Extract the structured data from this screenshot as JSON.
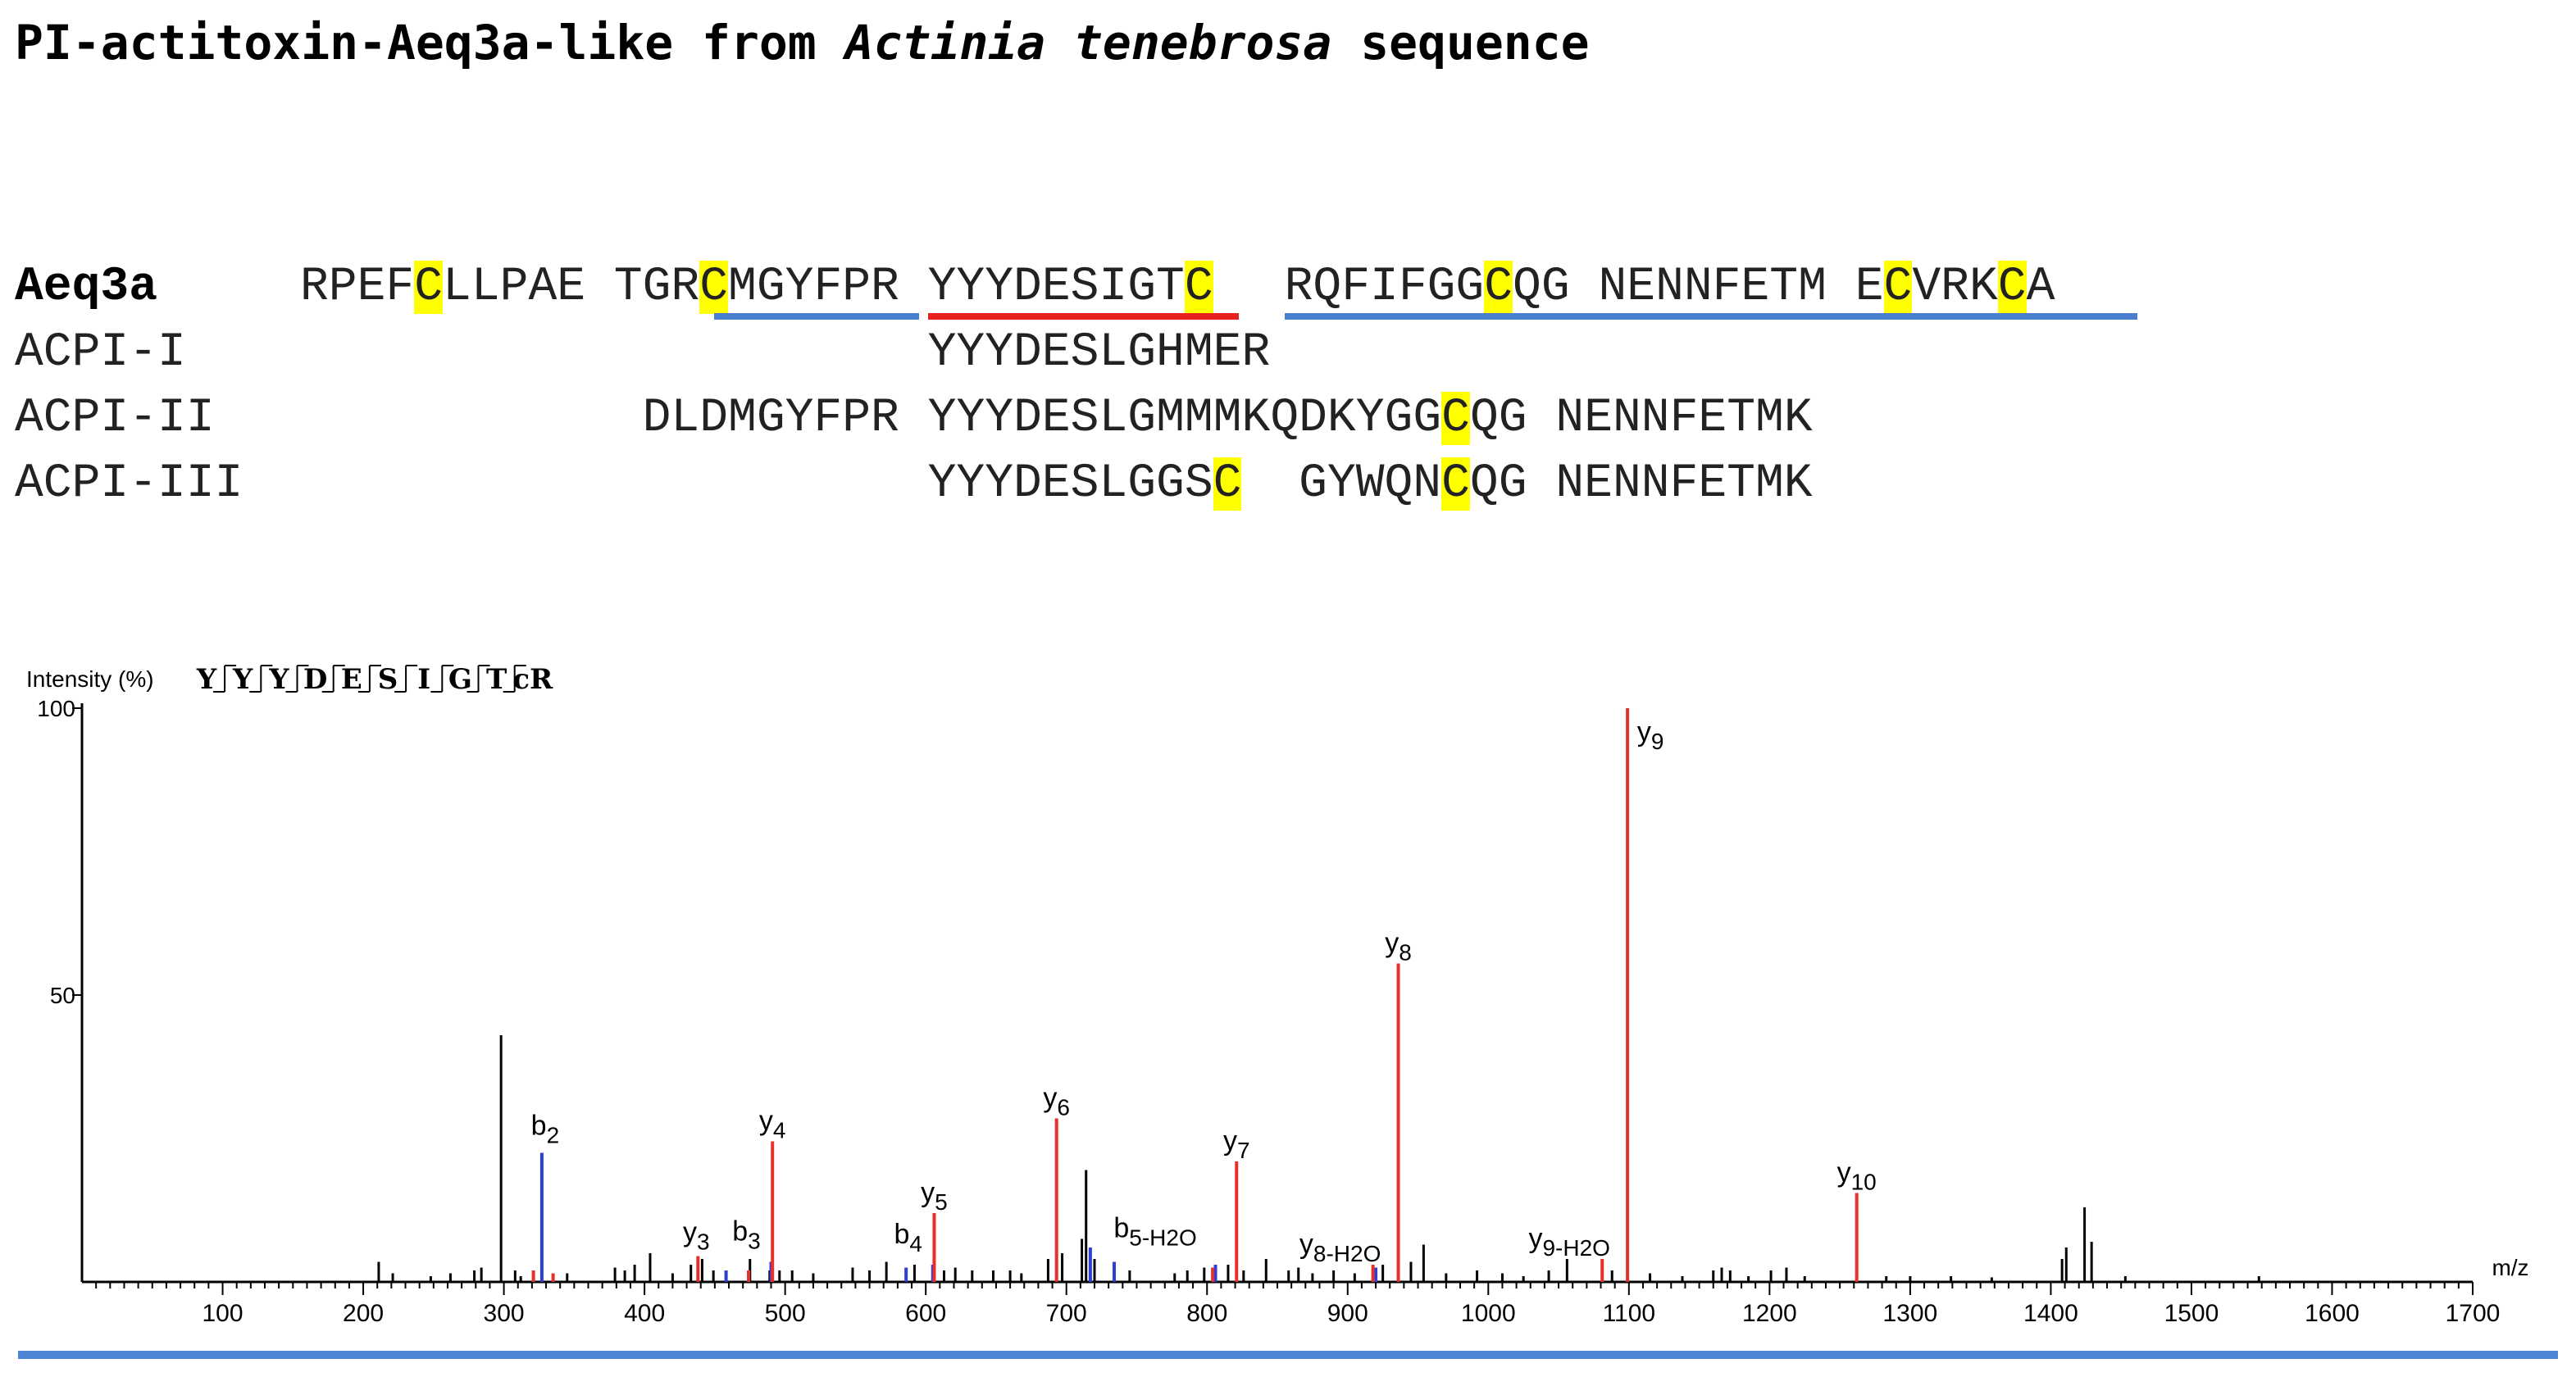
{
  "title": {
    "prefix": "PI-actitoxin-Aeq3a-like from ",
    "species": "Actinia tenebrosa",
    "suffix": " sequence"
  },
  "alignment": [
    {
      "name": "Aeq3a",
      "bold": true,
      "segments": [
        {
          "col": 10,
          "parts": [
            {
              "t": "RPEF"
            },
            {
              "t": "C",
              "hl": true
            },
            {
              "t": "LLPAE"
            }
          ]
        },
        {
          "col": 21,
          "parts": [
            {
              "t": "TGR"
            },
            {
              "t": "C",
              "hl": true
            },
            {
              "t": "MGYFPR"
            }
          ]
        },
        {
          "col": 32,
          "parts": [
            {
              "t": "YYYDESIGT"
            },
            {
              "t": "C",
              "hl": true
            }
          ]
        },
        {
          "col": 44.5,
          "parts": [
            {
              "t": "RQFIFGG"
            },
            {
              "t": "C",
              "hl": true
            },
            {
              "t": "QG NENNFETM E"
            },
            {
              "t": "C",
              "hl": true
            },
            {
              "t": "VRK"
            },
            {
              "t": "C",
              "hl": true
            },
            {
              "t": "A"
            }
          ]
        }
      ]
    },
    {
      "name": "ACPI-I",
      "bold": false,
      "segments": [
        {
          "col": 32,
          "parts": [
            {
              "t": "YYYDESLGHMER"
            }
          ]
        }
      ]
    },
    {
      "name": "ACPI-II",
      "bold": false,
      "segments": [
        {
          "col": 22,
          "parts": [
            {
              "t": "DLDMGYFPR YYYDESLGMMMKQDKYGG"
            },
            {
              "t": "C",
              "hl": true
            },
            {
              "t": "QG NENNFETMK"
            }
          ]
        }
      ]
    },
    {
      "name": "ACPI-III",
      "bold": false,
      "segments": [
        {
          "col": 32,
          "parts": [
            {
              "t": "YYYDESLGGS"
            },
            {
              "t": "C",
              "hl": true
            },
            {
              "t": "  GYWQN"
            },
            {
              "t": "C",
              "hl": true
            },
            {
              "t": "QG NENNFETMK"
            }
          ]
        }
      ]
    }
  ],
  "peptide_map": {
    "residues": [
      "Y",
      "Y",
      "Y",
      "D",
      "E",
      "S",
      "I",
      "G",
      "T",
      "cR"
    ]
  },
  "colors": {
    "y_ion": "#e8302a",
    "b_ion": "#2b3fd6",
    "unassigned": "#000000",
    "red_underline": "#e8201e",
    "blue_underline": "#4a7fcf",
    "highlight": "#ffff00"
  },
  "chart_data": {
    "type": "bar",
    "ylabel": "Intensity (%)",
    "xlabel": "m/z",
    "xlim": [
      0,
      1700
    ],
    "ylim": [
      0,
      100
    ],
    "xticks": [
      100,
      200,
      300,
      400,
      500,
      600,
      700,
      800,
      900,
      1000,
      1100,
      1200,
      1300,
      1400,
      1500,
      1600,
      1700
    ],
    "yticks": [
      50,
      100
    ],
    "series": [
      {
        "name": "y",
        "color": "#e8302a",
        "points": [
          {
            "x": 438,
            "y": 4.5,
            "label": "y",
            "sub": "3"
          },
          {
            "x": 491,
            "y": 24.5,
            "label": "y",
            "sub": "4"
          },
          {
            "x": 606,
            "y": 12,
            "label": "y",
            "sub": "5"
          },
          {
            "x": 693,
            "y": 28.5,
            "label": "y",
            "sub": "6"
          },
          {
            "x": 821,
            "y": 21,
            "label": "y",
            "sub": "7"
          },
          {
            "x": 936,
            "y": 55.5,
            "label": "y",
            "sub": "8"
          },
          {
            "x": 1099,
            "y": 100,
            "label": "y",
            "sub": "9"
          },
          {
            "x": 1262,
            "y": 15.5,
            "label": "y",
            "sub": "10"
          },
          {
            "x": 918,
            "y": 3,
            "label": "y",
            "sub": "8-H2O"
          },
          {
            "x": 1081,
            "y": 4,
            "label": "y",
            "sub": "9-H2O"
          },
          {
            "x": 321,
            "y": 2,
            "label": ""
          },
          {
            "x": 335,
            "y": 1.5,
            "label": ""
          },
          {
            "x": 804,
            "y": 2.5,
            "label": ""
          },
          {
            "x": 474,
            "y": 2,
            "label": ""
          }
        ]
      },
      {
        "name": "b",
        "color": "#2b3fd6",
        "points": [
          {
            "x": 327,
            "y": 22.5,
            "label": "b",
            "sub": "2"
          },
          {
            "x": 490,
            "y": 3.5,
            "label": "b",
            "sub": "3"
          },
          {
            "x": 605,
            "y": 3,
            "label": "b",
            "sub": "4"
          },
          {
            "x": 734,
            "y": 3.5,
            "label": "b",
            "sub": "5-H2O"
          },
          {
            "x": 586,
            "y": 2.5,
            "label": ""
          },
          {
            "x": 717,
            "y": 6,
            "label": ""
          },
          {
            "x": 806,
            "y": 3,
            "label": ""
          },
          {
            "x": 920,
            "y": 2.5,
            "label": ""
          },
          {
            "x": 458,
            "y": 2,
            "label": ""
          }
        ]
      },
      {
        "name": "other",
        "color": "#000000",
        "points": [
          {
            "x": 211,
            "y": 3.5
          },
          {
            "x": 221,
            "y": 1.5
          },
          {
            "x": 248,
            "y": 1
          },
          {
            "x": 262,
            "y": 1.5
          },
          {
            "x": 279,
            "y": 2
          },
          {
            "x": 284,
            "y": 2.5
          },
          {
            "x": 298,
            "y": 43
          },
          {
            "x": 308,
            "y": 2
          },
          {
            "x": 312,
            "y": 1
          },
          {
            "x": 345,
            "y": 1.5
          },
          {
            "x": 379,
            "y": 2.5
          },
          {
            "x": 386,
            "y": 2
          },
          {
            "x": 393,
            "y": 3
          },
          {
            "x": 404,
            "y": 5
          },
          {
            "x": 420,
            "y": 1.5
          },
          {
            "x": 433,
            "y": 3
          },
          {
            "x": 441,
            "y": 4
          },
          {
            "x": 449,
            "y": 2
          },
          {
            "x": 475,
            "y": 4
          },
          {
            "x": 489,
            "y": 2
          },
          {
            "x": 496,
            "y": 2
          },
          {
            "x": 505,
            "y": 2
          },
          {
            "x": 520,
            "y": 1.5
          },
          {
            "x": 548,
            "y": 2.5
          },
          {
            "x": 560,
            "y": 2
          },
          {
            "x": 572,
            "y": 3.5
          },
          {
            "x": 592,
            "y": 3
          },
          {
            "x": 613,
            "y": 2
          },
          {
            "x": 621,
            "y": 2.5
          },
          {
            "x": 633,
            "y": 2
          },
          {
            "x": 648,
            "y": 2
          },
          {
            "x": 660,
            "y": 2
          },
          {
            "x": 668,
            "y": 1.5
          },
          {
            "x": 687,
            "y": 4
          },
          {
            "x": 697,
            "y": 5
          },
          {
            "x": 711,
            "y": 7.5
          },
          {
            "x": 714,
            "y": 19.5
          },
          {
            "x": 720,
            "y": 4
          },
          {
            "x": 745,
            "y": 2
          },
          {
            "x": 777,
            "y": 1.5
          },
          {
            "x": 786,
            "y": 2
          },
          {
            "x": 798,
            "y": 2.5
          },
          {
            "x": 815,
            "y": 3
          },
          {
            "x": 826,
            "y": 2
          },
          {
            "x": 842,
            "y": 4
          },
          {
            "x": 858,
            "y": 2
          },
          {
            "x": 865,
            "y": 2.5
          },
          {
            "x": 875,
            "y": 1.5
          },
          {
            "x": 890,
            "y": 2
          },
          {
            "x": 905,
            "y": 1.5
          },
          {
            "x": 925,
            "y": 3
          },
          {
            "x": 945,
            "y": 3.5
          },
          {
            "x": 954,
            "y": 6.5
          },
          {
            "x": 970,
            "y": 1.5
          },
          {
            "x": 992,
            "y": 2
          },
          {
            "x": 1010,
            "y": 1.5
          },
          {
            "x": 1025,
            "y": 1
          },
          {
            "x": 1043,
            "y": 2
          },
          {
            "x": 1056,
            "y": 4
          },
          {
            "x": 1088,
            "y": 2
          },
          {
            "x": 1115,
            "y": 1.5
          },
          {
            "x": 1138,
            "y": 1
          },
          {
            "x": 1160,
            "y": 2
          },
          {
            "x": 1166,
            "y": 2.5
          },
          {
            "x": 1172,
            "y": 2
          },
          {
            "x": 1185,
            "y": 1
          },
          {
            "x": 1201,
            "y": 2
          },
          {
            "x": 1212,
            "y": 2.5
          },
          {
            "x": 1225,
            "y": 1
          },
          {
            "x": 1283,
            "y": 1
          },
          {
            "x": 1300,
            "y": 1
          },
          {
            "x": 1329,
            "y": 1
          },
          {
            "x": 1358,
            "y": 0.8
          },
          {
            "x": 1408,
            "y": 4
          },
          {
            "x": 1411,
            "y": 6
          },
          {
            "x": 1424,
            "y": 13
          },
          {
            "x": 1429,
            "y": 7
          },
          {
            "x": 1453,
            "y": 1
          },
          {
            "x": 1548,
            "y": 1
          }
        ]
      }
    ],
    "grid": false,
    "legend": "none"
  }
}
